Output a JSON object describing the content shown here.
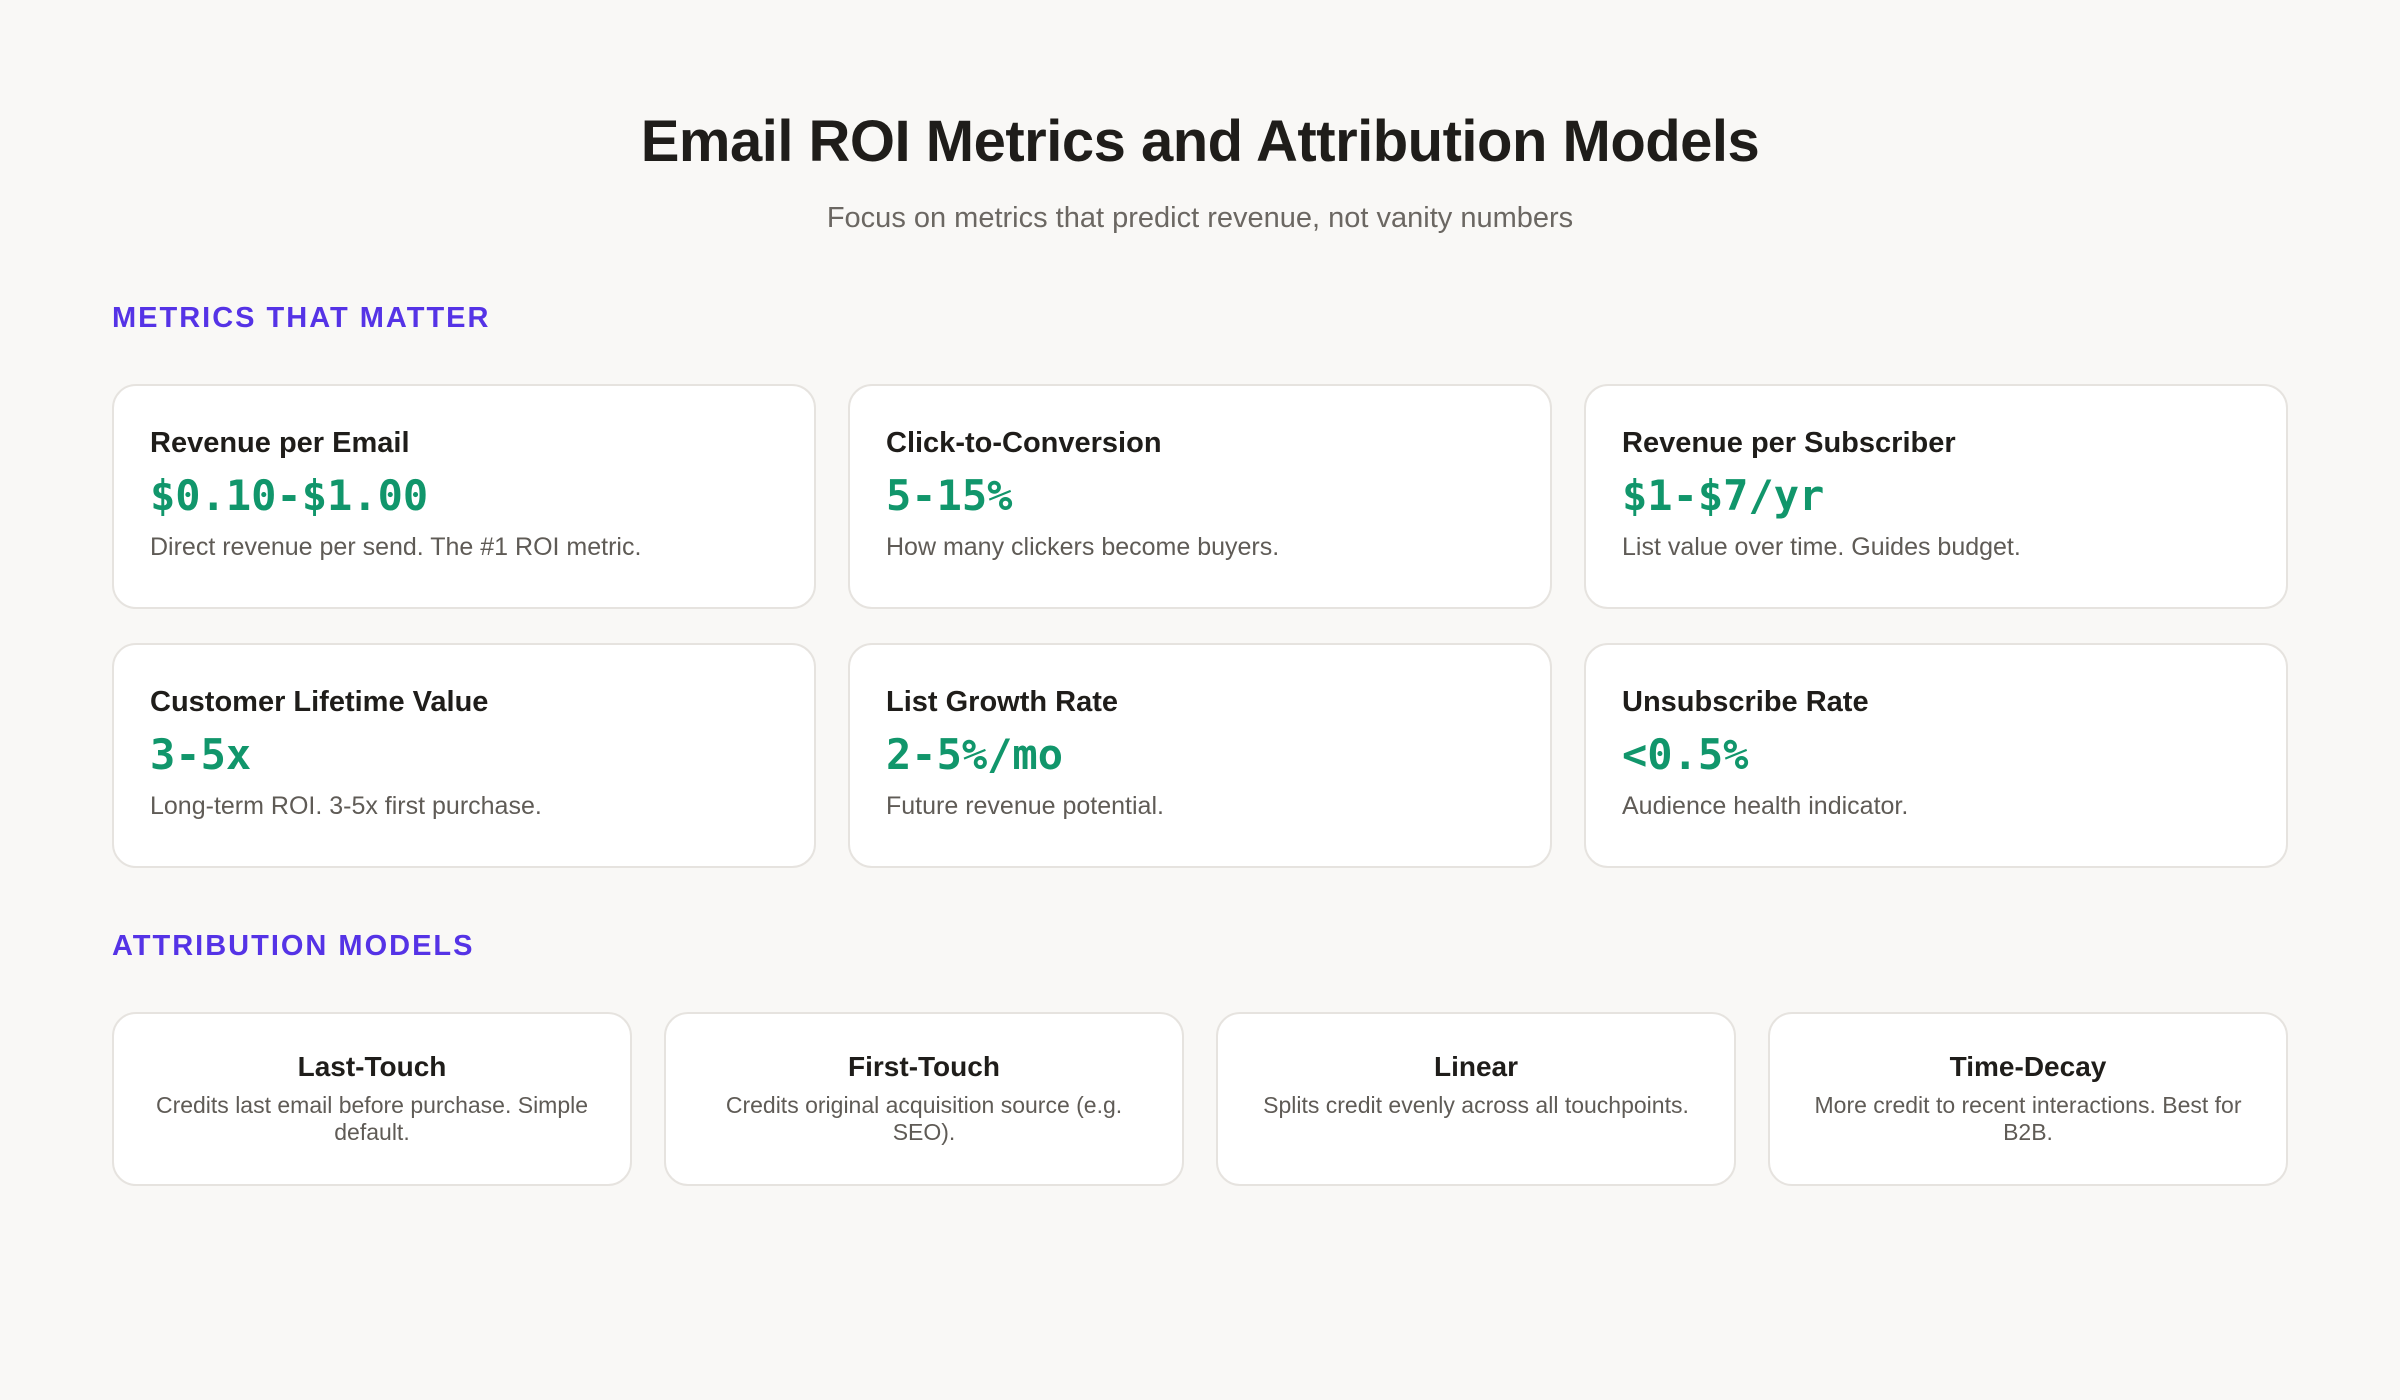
{
  "header": {
    "title": "Email ROI Metrics and Attribution Models",
    "subtitle": "Focus on metrics that predict revenue, not vanity numbers"
  },
  "sections": {
    "metrics_label": "METRICS THAT MATTER",
    "attribution_label": "ATTRIBUTION MODELS"
  },
  "metrics": [
    {
      "name": "Revenue per Email",
      "value": "$0.10-$1.00",
      "desc": "Direct revenue per send. The #1 ROI metric."
    },
    {
      "name": "Click-to-Conversion",
      "value": "5-15%",
      "desc": "How many clickers become buyers."
    },
    {
      "name": "Revenue per Subscriber",
      "value": "$1-$7/yr",
      "desc": "List value over time. Guides budget."
    },
    {
      "name": "Customer Lifetime Value",
      "value": "3-5x",
      "desc": "Long-term ROI. 3-5x first purchase."
    },
    {
      "name": "List Growth Rate",
      "value": "2-5%/mo",
      "desc": "Future revenue potential."
    },
    {
      "name": "Unsubscribe Rate",
      "value": "<0.5%",
      "desc": "Audience health indicator."
    }
  ],
  "attribution": [
    {
      "name": "Last-Touch",
      "desc": "Credits last email before purchase. Simple default."
    },
    {
      "name": "First-Touch",
      "desc": "Credits original acquisition source (e.g. SEO)."
    },
    {
      "name": "Linear",
      "desc": "Splits credit evenly across all touchpoints."
    },
    {
      "name": "Time-Decay",
      "desc": "More credit to recent interactions. Best for B2B."
    }
  ],
  "colors": {
    "accent": "#5533e6",
    "value": "#11966b",
    "background": "#f9f8f6"
  }
}
